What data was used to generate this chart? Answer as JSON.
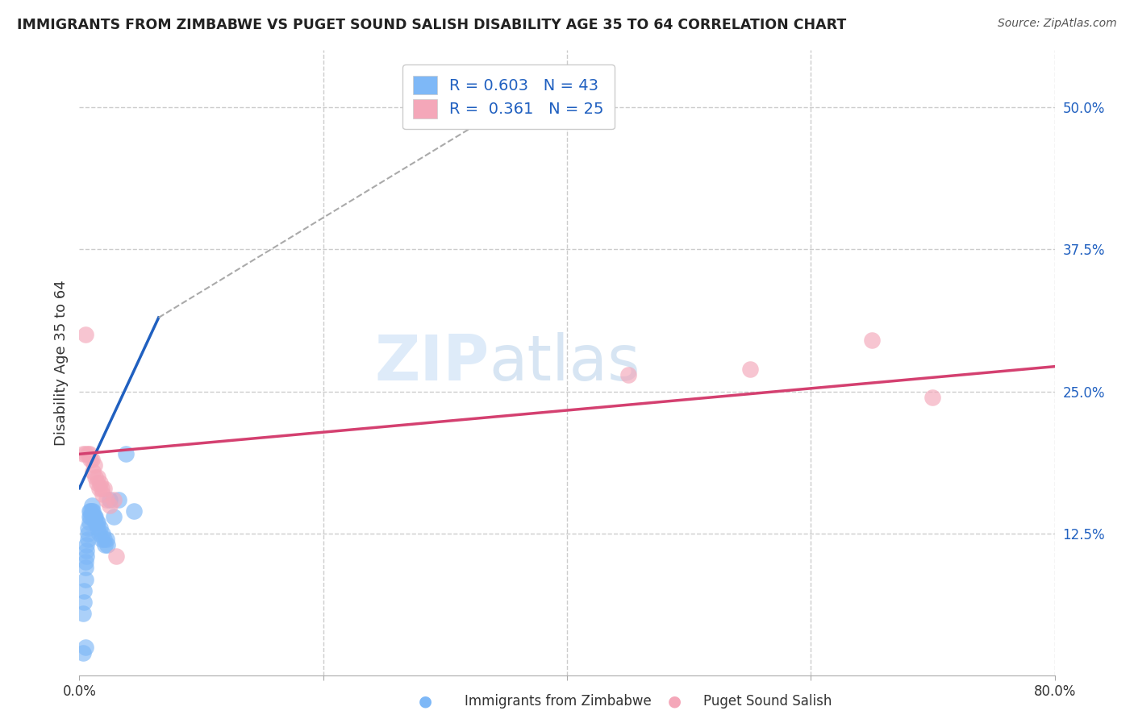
{
  "title": "IMMIGRANTS FROM ZIMBABWE VS PUGET SOUND SALISH DISABILITY AGE 35 TO 64 CORRELATION CHART",
  "source_text": "Source: ZipAtlas.com",
  "ylabel": "Disability Age 35 to 64",
  "xlabel": "",
  "xlim": [
    0.0,
    0.8
  ],
  "ylim": [
    0.0,
    0.55
  ],
  "xticks": [
    0.0,
    0.2,
    0.4,
    0.6,
    0.8
  ],
  "xticklabels": [
    "0.0%",
    "",
    "",
    "",
    "80.0%"
  ],
  "yticks_right": [
    0.125,
    0.25,
    0.375,
    0.5
  ],
  "ytick_right_labels": [
    "12.5%",
    "25.0%",
    "37.5%",
    "50.0%"
  ],
  "watermark_zip": "ZIP",
  "watermark_atlas": "atlas",
  "R_blue": 0.603,
  "N_blue": 43,
  "R_pink": 0.361,
  "N_pink": 25,
  "blue_color": "#7eb8f7",
  "pink_color": "#f4a7b9",
  "blue_line_color": "#2060c0",
  "pink_line_color": "#d44070",
  "grid_color": "#cccccc",
  "background_color": "#ffffff",
  "scatter_blue": [
    [
      0.003,
      0.055
    ],
    [
      0.004,
      0.065
    ],
    [
      0.004,
      0.075
    ],
    [
      0.005,
      0.085
    ],
    [
      0.005,
      0.095
    ],
    [
      0.005,
      0.1
    ],
    [
      0.006,
      0.105
    ],
    [
      0.006,
      0.11
    ],
    [
      0.006,
      0.115
    ],
    [
      0.007,
      0.12
    ],
    [
      0.007,
      0.125
    ],
    [
      0.007,
      0.13
    ],
    [
      0.008,
      0.135
    ],
    [
      0.008,
      0.14
    ],
    [
      0.008,
      0.145
    ],
    [
      0.009,
      0.14
    ],
    [
      0.009,
      0.145
    ],
    [
      0.01,
      0.145
    ],
    [
      0.01,
      0.15
    ],
    [
      0.011,
      0.14
    ],
    [
      0.011,
      0.145
    ],
    [
      0.012,
      0.14
    ],
    [
      0.012,
      0.14
    ],
    [
      0.013,
      0.135
    ],
    [
      0.013,
      0.14
    ],
    [
      0.014,
      0.135
    ],
    [
      0.015,
      0.13
    ],
    [
      0.015,
      0.135
    ],
    [
      0.016,
      0.125
    ],
    [
      0.017,
      0.13
    ],
    [
      0.018,
      0.12
    ],
    [
      0.019,
      0.125
    ],
    [
      0.02,
      0.12
    ],
    [
      0.021,
      0.115
    ],
    [
      0.022,
      0.12
    ],
    [
      0.023,
      0.115
    ],
    [
      0.025,
      0.155
    ],
    [
      0.028,
      0.14
    ],
    [
      0.032,
      0.155
    ],
    [
      0.038,
      0.195
    ],
    [
      0.045,
      0.145
    ],
    [
      0.005,
      0.025
    ],
    [
      0.003,
      0.02
    ]
  ],
  "scatter_pink": [
    [
      0.003,
      0.195
    ],
    [
      0.005,
      0.195
    ],
    [
      0.007,
      0.195
    ],
    [
      0.008,
      0.195
    ],
    [
      0.009,
      0.19
    ],
    [
      0.01,
      0.19
    ],
    [
      0.011,
      0.18
    ],
    [
      0.012,
      0.185
    ],
    [
      0.013,
      0.175
    ],
    [
      0.014,
      0.17
    ],
    [
      0.015,
      0.175
    ],
    [
      0.016,
      0.165
    ],
    [
      0.017,
      0.17
    ],
    [
      0.018,
      0.165
    ],
    [
      0.019,
      0.16
    ],
    [
      0.02,
      0.165
    ],
    [
      0.022,
      0.155
    ],
    [
      0.025,
      0.15
    ],
    [
      0.028,
      0.155
    ],
    [
      0.03,
      0.105
    ],
    [
      0.005,
      0.3
    ],
    [
      0.45,
      0.265
    ],
    [
      0.55,
      0.27
    ],
    [
      0.65,
      0.295
    ],
    [
      0.7,
      0.245
    ]
  ],
  "blue_trendline": [
    [
      0.0,
      0.165
    ],
    [
      0.065,
      0.315
    ]
  ],
  "blue_trendline_extended": [
    [
      0.065,
      0.315
    ],
    [
      0.38,
      0.52
    ]
  ],
  "pink_trendline": [
    [
      0.0,
      0.195
    ],
    [
      0.8,
      0.272
    ]
  ]
}
